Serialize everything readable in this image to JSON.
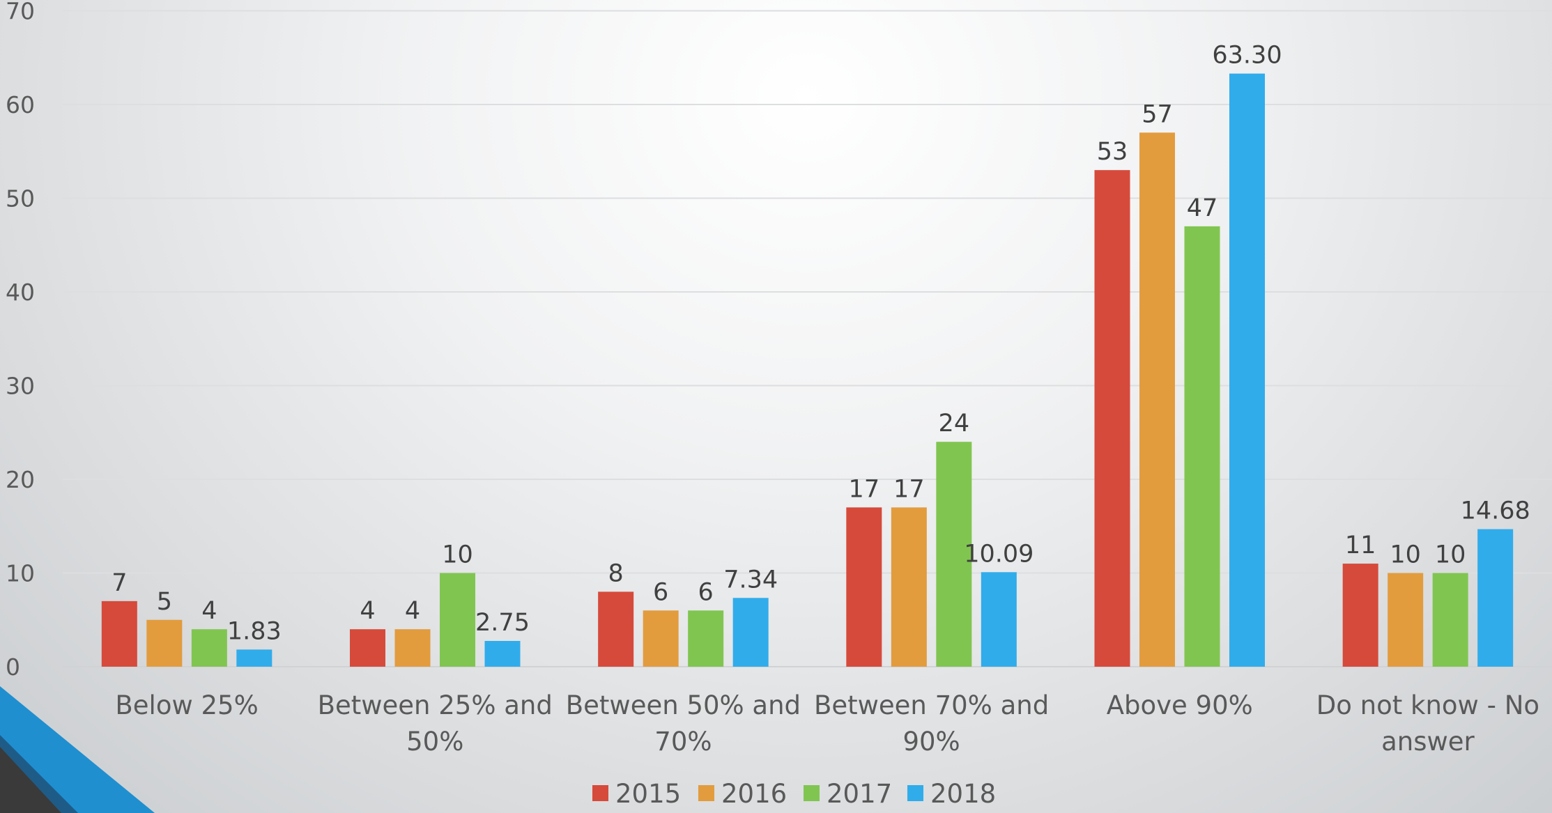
{
  "chart_data": {
    "type": "bar",
    "categories": [
      [
        "Below 25%"
      ],
      [
        "Between 25% and",
        "50%"
      ],
      [
        "Between 50% and",
        "70%"
      ],
      [
        "Between 70% and",
        "90%"
      ],
      [
        "Above 90%"
      ],
      [
        "Do not know - No",
        "answer"
      ]
    ],
    "series": [
      {
        "name": "2015",
        "color": "#d64a3b",
        "values": [
          7,
          4,
          8,
          17,
          53,
          11
        ],
        "labels": [
          "7",
          "4",
          "8",
          "17",
          "53",
          "11"
        ]
      },
      {
        "name": "2016",
        "color": "#e29c3e",
        "values": [
          5,
          4,
          6,
          17,
          57,
          10
        ],
        "labels": [
          "5",
          "4",
          "6",
          "17",
          "57",
          "10"
        ]
      },
      {
        "name": "2017",
        "color": "#81c551",
        "values": [
          4,
          10,
          6,
          24,
          47,
          10
        ],
        "labels": [
          "4",
          "10",
          "6",
          "24",
          "47",
          "10"
        ]
      },
      {
        "name": "2018",
        "color": "#30aceb",
        "values": [
          1.83,
          2.75,
          7.34,
          10.09,
          63.3,
          14.68
        ],
        "labels": [
          "1.83",
          "2.75",
          "7.34",
          "10.09",
          "63.30",
          "14.68"
        ]
      }
    ],
    "ylim": [
      0,
      70
    ],
    "yticks": [
      "0",
      "10",
      "20",
      "30",
      "40",
      "50",
      "60",
      "70"
    ],
    "grid": true,
    "legend": "bottom"
  }
}
